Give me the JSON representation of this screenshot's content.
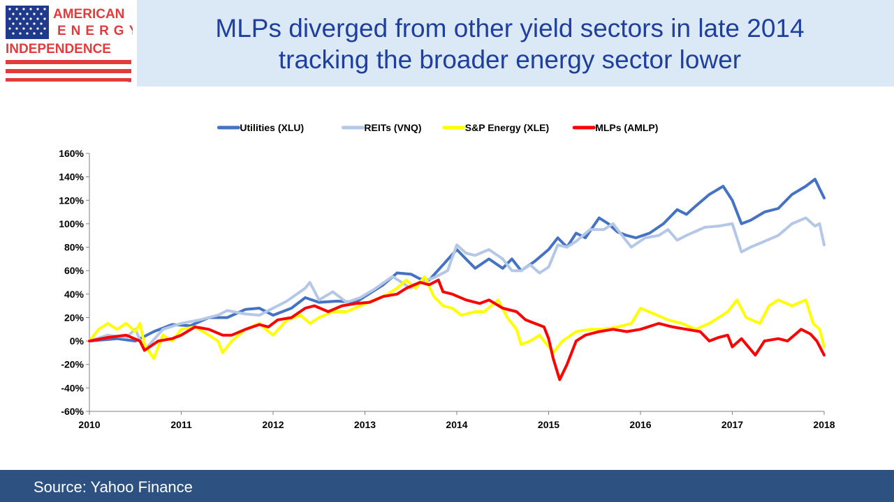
{
  "logo": {
    "line1": "AMERICAN",
    "line2": "ENERGY",
    "line3": "INDEPENDENCE",
    "tm": "™",
    "flag_blue": "#1f3a8a",
    "stripe_red": "#e23b3b"
  },
  "title": {
    "line1": "MLPs diverged from other yield sectors in late 2014",
    "line2": "tracking the broader energy sector lower"
  },
  "footer": {
    "source": "Source: Yahoo Finance"
  },
  "colors": {
    "header_band": "#dbe9f6",
    "title_text": "#1f3f9f",
    "footer_band": "#2d5282"
  },
  "chart_data": {
    "type": "line",
    "title": "",
    "xlabel": "",
    "ylabel": "",
    "xlim": [
      2010,
      2018
    ],
    "ylim": [
      -60,
      160
    ],
    "x_ticks": [
      "2010",
      "2011",
      "2012",
      "2013",
      "2014",
      "2015",
      "2016",
      "2017",
      "2018"
    ],
    "y_ticks": [
      "160%",
      "140%",
      "120%",
      "100%",
      "80%",
      "60%",
      "40%",
      "20%",
      "0%",
      "-20%",
      "-40%",
      "-60%"
    ],
    "grid": false,
    "legend_position": "top-center",
    "series": [
      {
        "name": "Utilities (XLU)",
        "color": "#4472c4",
        "points": [
          [
            2010.0,
            0
          ],
          [
            2010.3,
            2
          ],
          [
            2010.5,
            0
          ],
          [
            2010.7,
            8
          ],
          [
            2010.9,
            14
          ],
          [
            2011.1,
            13
          ],
          [
            2011.3,
            20
          ],
          [
            2011.5,
            20
          ],
          [
            2011.7,
            27
          ],
          [
            2011.85,
            28
          ],
          [
            2012.0,
            22
          ],
          [
            2012.2,
            28
          ],
          [
            2012.35,
            37
          ],
          [
            2012.5,
            33
          ],
          [
            2012.7,
            34
          ],
          [
            2012.9,
            33
          ],
          [
            2013.0,
            38
          ],
          [
            2013.2,
            48
          ],
          [
            2013.35,
            58
          ],
          [
            2013.5,
            57
          ],
          [
            2013.6,
            53
          ],
          [
            2013.7,
            52
          ],
          [
            2013.85,
            65
          ],
          [
            2014.0,
            78
          ],
          [
            2014.1,
            70
          ],
          [
            2014.2,
            62
          ],
          [
            2014.35,
            70
          ],
          [
            2014.5,
            62
          ],
          [
            2014.6,
            70
          ],
          [
            2014.7,
            60
          ],
          [
            2014.85,
            68
          ],
          [
            2015.0,
            78
          ],
          [
            2015.1,
            88
          ],
          [
            2015.2,
            80
          ],
          [
            2015.3,
            92
          ],
          [
            2015.4,
            88
          ],
          [
            2015.55,
            105
          ],
          [
            2015.65,
            100
          ],
          [
            2015.75,
            93
          ],
          [
            2015.85,
            90
          ],
          [
            2015.95,
            88
          ],
          [
            2016.1,
            92
          ],
          [
            2016.25,
            100
          ],
          [
            2016.4,
            112
          ],
          [
            2016.5,
            108
          ],
          [
            2016.6,
            115
          ],
          [
            2016.75,
            125
          ],
          [
            2016.9,
            132
          ],
          [
            2017.0,
            120
          ],
          [
            2017.1,
            100
          ],
          [
            2017.2,
            103
          ],
          [
            2017.35,
            110
          ],
          [
            2017.5,
            113
          ],
          [
            2017.65,
            125
          ],
          [
            2017.8,
            132
          ],
          [
            2017.9,
            138
          ],
          [
            2017.95,
            130
          ],
          [
            2018.0,
            122
          ]
        ]
      },
      {
        "name": "REITs (VNQ)",
        "color": "#b4c7e7",
        "points": [
          [
            2010.0,
            0
          ],
          [
            2010.2,
            5
          ],
          [
            2010.4,
            3
          ],
          [
            2010.5,
            10
          ],
          [
            2010.6,
            -8
          ],
          [
            2010.8,
            10
          ],
          [
            2011.0,
            15
          ],
          [
            2011.2,
            18
          ],
          [
            2011.4,
            22
          ],
          [
            2011.5,
            26
          ],
          [
            2011.7,
            23
          ],
          [
            2011.85,
            22
          ],
          [
            2012.0,
            28
          ],
          [
            2012.15,
            34
          ],
          [
            2012.35,
            45
          ],
          [
            2012.4,
            50
          ],
          [
            2012.5,
            35
          ],
          [
            2012.65,
            42
          ],
          [
            2012.8,
            33
          ],
          [
            2012.95,
            37
          ],
          [
            2013.1,
            44
          ],
          [
            2013.3,
            55
          ],
          [
            2013.4,
            50
          ],
          [
            2013.5,
            45
          ],
          [
            2013.6,
            50
          ],
          [
            2013.75,
            54
          ],
          [
            2013.9,
            60
          ],
          [
            2014.0,
            82
          ],
          [
            2014.1,
            75
          ],
          [
            2014.2,
            73
          ],
          [
            2014.35,
            78
          ],
          [
            2014.5,
            70
          ],
          [
            2014.6,
            60
          ],
          [
            2014.7,
            60
          ],
          [
            2014.8,
            65
          ],
          [
            2014.9,
            58
          ],
          [
            2015.0,
            63
          ],
          [
            2015.1,
            82
          ],
          [
            2015.2,
            80
          ],
          [
            2015.3,
            85
          ],
          [
            2015.45,
            95
          ],
          [
            2015.6,
            95
          ],
          [
            2015.7,
            100
          ],
          [
            2015.8,
            90
          ],
          [
            2015.9,
            80
          ],
          [
            2016.05,
            88
          ],
          [
            2016.2,
            90
          ],
          [
            2016.3,
            95
          ],
          [
            2016.4,
            86
          ],
          [
            2016.5,
            90
          ],
          [
            2016.7,
            97
          ],
          [
            2016.85,
            98
          ],
          [
            2017.0,
            100
          ],
          [
            2017.1,
            76
          ],
          [
            2017.2,
            80
          ],
          [
            2017.35,
            85
          ],
          [
            2017.5,
            90
          ],
          [
            2017.65,
            100
          ],
          [
            2017.8,
            105
          ],
          [
            2017.9,
            98
          ],
          [
            2017.95,
            100
          ],
          [
            2018.0,
            82
          ]
        ]
      },
      {
        "name": "S&P Energy (XLE)",
        "color": "#ffff00",
        "points": [
          [
            2010.0,
            0
          ],
          [
            2010.1,
            10
          ],
          [
            2010.2,
            15
          ],
          [
            2010.3,
            10
          ],
          [
            2010.4,
            15
          ],
          [
            2010.5,
            8
          ],
          [
            2010.55,
            15
          ],
          [
            2010.6,
            -3
          ],
          [
            2010.7,
            -15
          ],
          [
            2010.8,
            5
          ],
          [
            2010.9,
            0
          ],
          [
            2011.0,
            10
          ],
          [
            2011.15,
            12
          ],
          [
            2011.3,
            5
          ],
          [
            2011.4,
            0
          ],
          [
            2011.45,
            -10
          ],
          [
            2011.55,
            0
          ],
          [
            2011.7,
            10
          ],
          [
            2011.85,
            15
          ],
          [
            2011.95,
            8
          ],
          [
            2012.0,
            5
          ],
          [
            2012.15,
            18
          ],
          [
            2012.3,
            22
          ],
          [
            2012.4,
            15
          ],
          [
            2012.5,
            20
          ],
          [
            2012.65,
            25
          ],
          [
            2012.8,
            25
          ],
          [
            2012.95,
            30
          ],
          [
            2013.1,
            35
          ],
          [
            2013.25,
            40
          ],
          [
            2013.35,
            45
          ],
          [
            2013.45,
            52
          ],
          [
            2013.55,
            45
          ],
          [
            2013.65,
            55
          ],
          [
            2013.75,
            38
          ],
          [
            2013.85,
            30
          ],
          [
            2013.95,
            28
          ],
          [
            2014.05,
            22
          ],
          [
            2014.2,
            25
          ],
          [
            2014.3,
            25
          ],
          [
            2014.45,
            35
          ],
          [
            2014.55,
            20
          ],
          [
            2014.65,
            10
          ],
          [
            2014.7,
            -3
          ],
          [
            2014.8,
            0
          ],
          [
            2014.9,
            5
          ],
          [
            2015.0,
            -5
          ],
          [
            2015.05,
            -10
          ],
          [
            2015.15,
            0
          ],
          [
            2015.3,
            8
          ],
          [
            2015.45,
            10
          ],
          [
            2015.6,
            10
          ],
          [
            2015.75,
            12
          ],
          [
            2015.9,
            15
          ],
          [
            2016.0,
            28
          ],
          [
            2016.15,
            23
          ],
          [
            2016.3,
            18
          ],
          [
            2016.45,
            15
          ],
          [
            2016.6,
            10
          ],
          [
            2016.75,
            15
          ],
          [
            2016.85,
            20
          ],
          [
            2016.95,
            25
          ],
          [
            2017.05,
            35
          ],
          [
            2017.15,
            20
          ],
          [
            2017.3,
            15
          ],
          [
            2017.4,
            30
          ],
          [
            2017.5,
            35
          ],
          [
            2017.65,
            30
          ],
          [
            2017.8,
            35
          ],
          [
            2017.88,
            15
          ],
          [
            2017.95,
            10
          ],
          [
            2018.0,
            -5
          ]
        ]
      },
      {
        "name": "MLPs (AMLP)",
        "color": "#ff0000",
        "points": [
          [
            2010.0,
            0
          ],
          [
            2010.2,
            3
          ],
          [
            2010.4,
            5
          ],
          [
            2010.55,
            0
          ],
          [
            2010.6,
            -8
          ],
          [
            2010.75,
            0
          ],
          [
            2010.9,
            2
          ],
          [
            2011.0,
            5
          ],
          [
            2011.15,
            12
          ],
          [
            2011.3,
            10
          ],
          [
            2011.45,
            5
          ],
          [
            2011.55,
            5
          ],
          [
            2011.7,
            10
          ],
          [
            2011.85,
            14
          ],
          [
            2011.95,
            12
          ],
          [
            2012.05,
            18
          ],
          [
            2012.2,
            20
          ],
          [
            2012.35,
            28
          ],
          [
            2012.45,
            30
          ],
          [
            2012.6,
            25
          ],
          [
            2012.75,
            30
          ],
          [
            2012.9,
            32
          ],
          [
            2013.05,
            33
          ],
          [
            2013.2,
            38
          ],
          [
            2013.35,
            40
          ],
          [
            2013.45,
            45
          ],
          [
            2013.6,
            50
          ],
          [
            2013.7,
            48
          ],
          [
            2013.8,
            52
          ],
          [
            2013.85,
            42
          ],
          [
            2013.95,
            40
          ],
          [
            2014.1,
            35
          ],
          [
            2014.25,
            32
          ],
          [
            2014.35,
            35
          ],
          [
            2014.5,
            28
          ],
          [
            2014.65,
            25
          ],
          [
            2014.75,
            18
          ],
          [
            2014.85,
            15
          ],
          [
            2014.95,
            12
          ],
          [
            2015.0,
            2
          ],
          [
            2015.05,
            -15
          ],
          [
            2015.12,
            -33
          ],
          [
            2015.2,
            -20
          ],
          [
            2015.3,
            0
          ],
          [
            2015.4,
            5
          ],
          [
            2015.55,
            8
          ],
          [
            2015.7,
            10
          ],
          [
            2015.85,
            8
          ],
          [
            2016.0,
            10
          ],
          [
            2016.2,
            15
          ],
          [
            2016.35,
            12
          ],
          [
            2016.5,
            10
          ],
          [
            2016.65,
            8
          ],
          [
            2016.75,
            0
          ],
          [
            2016.85,
            3
          ],
          [
            2016.95,
            5
          ],
          [
            2017.0,
            -5
          ],
          [
            2017.1,
            2
          ],
          [
            2017.25,
            -12
          ],
          [
            2017.35,
            0
          ],
          [
            2017.5,
            2
          ],
          [
            2017.6,
            0
          ],
          [
            2017.75,
            10
          ],
          [
            2017.85,
            6
          ],
          [
            2017.92,
            0
          ],
          [
            2018.0,
            -12
          ]
        ]
      }
    ]
  }
}
